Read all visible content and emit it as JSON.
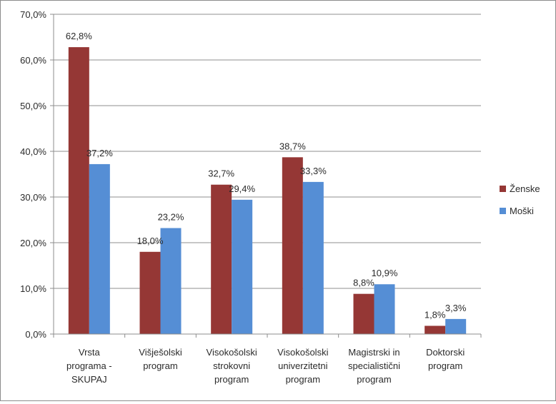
{
  "chart_data": {
    "type": "bar",
    "title": "",
    "xlabel": "",
    "ylabel": "",
    "ylim": [
      0,
      70
    ],
    "y_ticks": [
      "0,0%",
      "10,0%",
      "20,0%",
      "30,0%",
      "40,0%",
      "50,0%",
      "60,0%",
      "70,0%"
    ],
    "grid": true,
    "legend_position": "right",
    "categories": [
      [
        "Vrsta",
        "programa -",
        "SKUPAJ"
      ],
      [
        "Višješolski",
        "program"
      ],
      [
        "Visokošolski",
        "strokovni",
        "program"
      ],
      [
        "Visokošolski",
        "univerzitetni",
        "program"
      ],
      [
        "Magistrski in",
        "specialistični",
        "program"
      ],
      [
        "Doktorski",
        "program"
      ]
    ],
    "series": [
      {
        "name": "Ženske",
        "color": "#953735",
        "values": [
          62.8,
          18.0,
          32.7,
          38.7,
          8.8,
          1.8
        ],
        "labels": [
          "62,8%",
          "18,0%",
          "32,7%",
          "38,7%",
          "8,8%",
          "1,8%"
        ]
      },
      {
        "name": "Moški",
        "color": "#558ED5",
        "values": [
          37.2,
          23.2,
          29.4,
          33.3,
          10.9,
          3.3
        ],
        "labels": [
          "37,2%",
          "23,2%",
          "29,4%",
          "33,3%",
          "10,9%",
          "3,3%"
        ]
      }
    ]
  }
}
